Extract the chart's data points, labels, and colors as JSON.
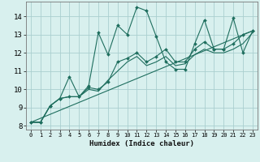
{
  "xlabel": "Humidex (Indice chaleur)",
  "bg_color": "#d8f0ee",
  "grid_color": "#aacfcf",
  "line_color": "#1e6e5e",
  "xlim": [
    -0.5,
    23.5
  ],
  "ylim": [
    7.8,
    14.8
  ],
  "xticks": [
    0,
    1,
    2,
    3,
    4,
    5,
    6,
    7,
    8,
    9,
    10,
    11,
    12,
    13,
    14,
    15,
    16,
    17,
    18,
    19,
    20,
    21,
    22,
    23
  ],
  "yticks": [
    8,
    9,
    10,
    11,
    12,
    13,
    14
  ],
  "series": [
    {
      "x": [
        0,
        1,
        2,
        3,
        4,
        5,
        6,
        7,
        8,
        9,
        10,
        11,
        12,
        13,
        14,
        15,
        16,
        17,
        18,
        19,
        20,
        21,
        22,
        23
      ],
      "y": [
        8.2,
        8.2,
        9.1,
        9.5,
        10.7,
        9.6,
        10.2,
        13.1,
        11.9,
        13.5,
        13.0,
        14.5,
        14.3,
        12.9,
        11.5,
        11.1,
        11.1,
        12.5,
        13.8,
        12.2,
        12.2,
        13.9,
        12.0,
        13.2
      ],
      "marker": true
    },
    {
      "x": [
        0,
        1,
        2,
        3,
        4,
        5,
        6,
        7,
        8,
        9,
        10,
        11,
        12,
        13,
        14,
        15,
        16,
        17,
        18,
        19,
        20,
        21,
        22,
        23
      ],
      "y": [
        8.2,
        8.2,
        9.1,
        9.5,
        9.6,
        9.6,
        10.1,
        10.0,
        10.4,
        11.5,
        11.7,
        12.0,
        11.5,
        11.8,
        12.2,
        11.5,
        11.5,
        12.2,
        12.6,
        12.2,
        12.2,
        12.5,
        13.0,
        13.2
      ],
      "marker": true
    },
    {
      "x": [
        0,
        1,
        2,
        3,
        4,
        5,
        6,
        7,
        8,
        9,
        10,
        11,
        12,
        13,
        14,
        15,
        16,
        17,
        18,
        19,
        20,
        21,
        22,
        23
      ],
      "y": [
        8.2,
        8.2,
        9.1,
        9.5,
        9.6,
        9.6,
        10.0,
        9.9,
        10.5,
        11.0,
        11.5,
        11.8,
        11.3,
        11.5,
        11.8,
        11.3,
        11.4,
        11.9,
        12.2,
        12.0,
        12.0,
        12.2,
        12.5,
        13.1
      ],
      "marker": false
    },
    {
      "x": [
        0,
        23
      ],
      "y": [
        8.2,
        13.2
      ],
      "marker": false
    }
  ]
}
